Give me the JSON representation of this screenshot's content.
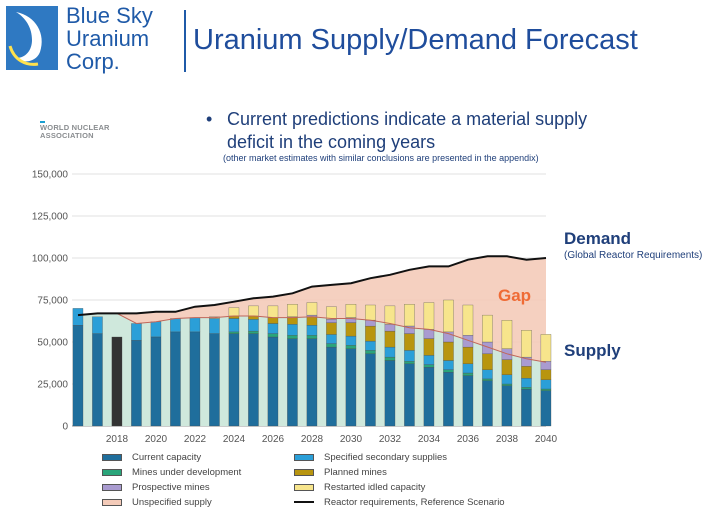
{
  "header": {
    "brand_lines": [
      "Blue Sky",
      "Uranium",
      "Corp."
    ],
    "title": "Uranium Supply/Demand Forecast"
  },
  "bullet": {
    "symbol": "•",
    "text": "Current predictions indicate a material supply deficit in the coming years",
    "note": "(other market estimates with similar conclusions are presented in the appendix)"
  },
  "source": {
    "line1": "WORLD NUCLEAR",
    "line2": "ASSOCIATION"
  },
  "labels": {
    "demand": "Demand",
    "demand_sub": "(Global Reactor Requirements)",
    "supply": "Supply",
    "gap": "Gap"
  },
  "colors": {
    "brand_blue": "#1f5aa8",
    "current_capacity": "#1f6e9c",
    "mines_under_development": "#2aa57a",
    "specified_secondary": "#2b9fd8",
    "planned_mines": "#b8950f",
    "prospective_mines": "#a99bd0",
    "restarted_idled": "#f7e58c",
    "unspecified_supply": "#f4cbb9",
    "demand_line": "#111111",
    "gap_text": "#ef6b35",
    "supply_area": "#cfe8dc",
    "historical_bar_dark": "#333333",
    "axis_text": "#555555"
  },
  "chart_data": {
    "type": "bar",
    "stacked": true,
    "x": [
      2016,
      2017,
      2018,
      2019,
      2020,
      2021,
      2022,
      2023,
      2024,
      2025,
      2026,
      2027,
      2028,
      2029,
      2030,
      2031,
      2032,
      2033,
      2034,
      2035,
      2036,
      2037,
      2038,
      2039,
      2040
    ],
    "xticks": [
      "2018",
      "2020",
      "2022",
      "2024",
      "2026",
      "2028",
      "2030",
      "2032",
      "2034",
      "2036",
      "2038",
      "2040"
    ],
    "ylim": [
      0,
      150000
    ],
    "yticks": [
      "0",
      "25,000",
      "50,000",
      "75,000",
      "100,000",
      "125,000",
      "150,000"
    ],
    "series": [
      {
        "name": "Current capacity",
        "color_key": "current_capacity",
        "values": [
          60000,
          55000,
          53000,
          51000,
          53000,
          56000,
          56000,
          55000,
          55000,
          55000,
          53000,
          52000,
          52000,
          47000,
          46000,
          43000,
          39000,
          37000,
          35000,
          32000,
          30000,
          27000,
          24000,
          22000,
          21000
        ]
      },
      {
        "name": "Mines under development",
        "color_key": "mines_under_development",
        "values": [
          0,
          0,
          0,
          0,
          0,
          0,
          0,
          0,
          1000,
          1500,
          2000,
          2000,
          2000,
          2000,
          2000,
          2000,
          2000,
          1500,
          1500,
          1500,
          1500,
          1000,
          1000,
          1000,
          1000
        ]
      },
      {
        "name": "Specified secondary supplies",
        "color_key": "specified_secondary",
        "values": [
          10000,
          10000,
          0,
          10000,
          9000,
          8000,
          8500,
          9000,
          8000,
          7000,
          6000,
          6500,
          6000,
          5500,
          5500,
          5500,
          6000,
          6500,
          5500,
          5500,
          5500,
          5500,
          5500,
          5500,
          5500
        ]
      },
      {
        "name": "Planned mines",
        "color_key": "planned_mines",
        "values": [
          0,
          0,
          0,
          0,
          0,
          0,
          0,
          0,
          1500,
          2000,
          3500,
          4000,
          5000,
          7000,
          8000,
          9000,
          9500,
          10000,
          10000,
          11000,
          10000,
          9500,
          9000,
          7000,
          6000
        ]
      },
      {
        "name": "Prospective mines",
        "color_key": "prospective_mines",
        "values": [
          0,
          0,
          0,
          0,
          0,
          0,
          0,
          0,
          0,
          0,
          0,
          500,
          1000,
          2000,
          3000,
          3500,
          4000,
          4500,
          5500,
          6000,
          7000,
          7000,
          6500,
          5500,
          5000
        ]
      },
      {
        "name": "Restarted idled capacity",
        "color_key": "restarted_idled",
        "values": [
          0,
          0,
          0,
          0,
          0,
          0,
          0,
          1000,
          5000,
          6000,
          7000,
          7500,
          7500,
          7500,
          8000,
          9000,
          11000,
          13000,
          16000,
          19000,
          18000,
          16000,
          17000,
          16000,
          16000
        ]
      },
      {
        "name": "Unspecified supply",
        "color_key": "unspecified_supply",
        "values": [
          0,
          2000,
          14000,
          0,
          5000,
          4000,
          5000,
          5000,
          1000,
          2000,
          3000,
          4000,
          5000,
          7000,
          10000,
          15000,
          18000,
          20000,
          22000,
          22000,
          28000,
          34000,
          37000,
          39000,
          40000
        ]
      }
    ],
    "supply_line": [
      66000,
      67000,
      67000,
      61000,
      62000,
      64000,
      64500,
      64500,
      65500,
      65500,
      64500,
      64500,
      65000,
      64000,
      64000,
      63000,
      61000,
      58500,
      57500,
      55000,
      51000,
      47000,
      43000,
      40000,
      38000
    ],
    "demand_line": {
      "name": "Reactor requirements, Reference Scenario",
      "values": [
        66000,
        67000,
        67000,
        67000,
        68000,
        68000,
        71000,
        72000,
        74000,
        76000,
        77000,
        79000,
        83000,
        84000,
        85000,
        88000,
        90000,
        93000,
        95000,
        95000,
        99000,
        101000,
        101000,
        99000,
        100000
      ]
    },
    "historical_dark_bar_year": 2018,
    "legend": [
      {
        "label": "Current capacity",
        "kind": "box",
        "color_key": "current_capacity"
      },
      {
        "label": "Specified secondary supplies",
        "kind": "box",
        "color_key": "specified_secondary"
      },
      {
        "label": "Mines under development",
        "kind": "box",
        "color_key": "mines_under_development"
      },
      {
        "label": "Planned mines",
        "kind": "box",
        "color_key": "planned_mines"
      },
      {
        "label": "Prospective mines",
        "kind": "box",
        "color_key": "prospective_mines"
      },
      {
        "label": "Restarted idled capacity",
        "kind": "box",
        "color_key": "restarted_idled"
      },
      {
        "label": "Unspecified supply",
        "kind": "box",
        "color_key": "unspecified_supply"
      },
      {
        "label": "Reactor requirements, Reference Scenario",
        "kind": "line",
        "color_key": "demand_line"
      }
    ],
    "legend_placement": "bottom",
    "grid": "horizontal"
  }
}
